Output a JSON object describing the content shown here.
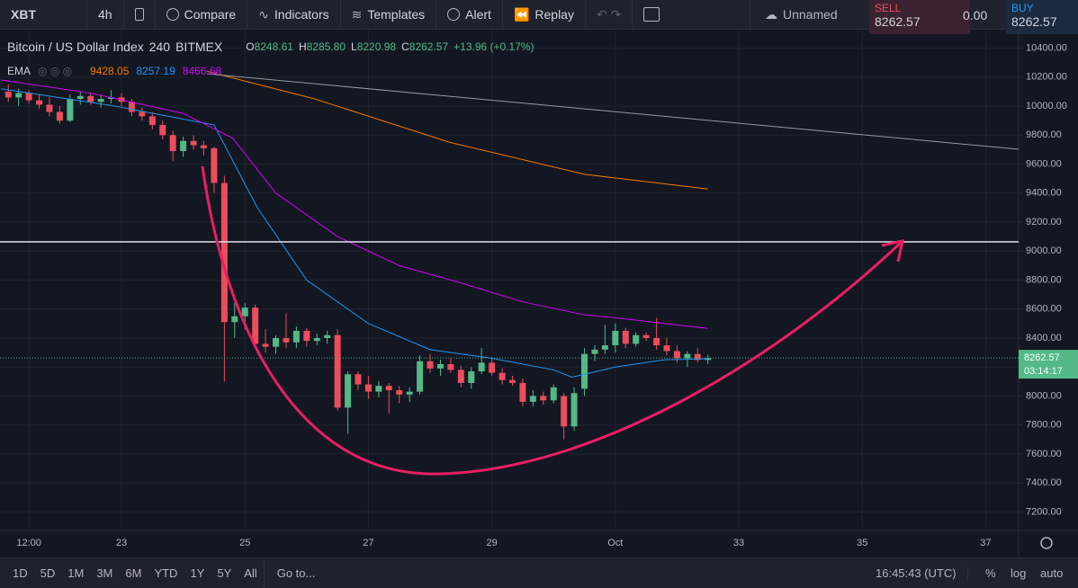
{
  "toolbar": {
    "symbol": "XBT",
    "interval": "4h",
    "compare": "Compare",
    "indicators": "Indicators",
    "templates": "Templates",
    "alert": "Alert",
    "replay": "Replay",
    "layout": "Unnamed",
    "sell": "SELL",
    "sell_price": "8262.57",
    "spread": "0.00",
    "buy": "BUY",
    "buy_price": "8262.57"
  },
  "legend": {
    "name": "Bitcoin / US Dollar Index",
    "interval": "240",
    "exchange": "BITMEX",
    "o_label": "O",
    "o": "8248.61",
    "h_label": "H",
    "h": "8285.80",
    "l_label": "L",
    "l": "8220.98",
    "c_label": "C",
    "c": "8262.57",
    "change": "+13.96 (+0.17%)",
    "ema_label": "EMA"
  },
  "countdown": "03:14:17",
  "bottom_bar": {
    "ranges": [
      "1D",
      "5D",
      "1M",
      "3M",
      "6M",
      "YTD",
      "1Y",
      "5Y",
      "All"
    ],
    "goto": "Go to...",
    "clock": "16:45:43 (UTC)",
    "percent": "%",
    "log": "log",
    "auto": "auto"
  },
  "chart_data": {
    "type": "candlestick",
    "candles": {
      "t": [
        21.167,
        21.333,
        21.5,
        21.667,
        21.833,
        22,
        22.167,
        22.333,
        22.5,
        22.667,
        22.833,
        23,
        23.167,
        23.333,
        23.5,
        23.667,
        23.833,
        24,
        24.167,
        24.333,
        24.5,
        24.667,
        24.833,
        25,
        25.167,
        25.333,
        25.5,
        25.667,
        25.833,
        26,
        26.167,
        26.333,
        26.5,
        26.667,
        26.833,
        27,
        27.167,
        27.333,
        27.5,
        27.667,
        27.833,
        28,
        28.167,
        28.333,
        28.5,
        28.667,
        28.833,
        29,
        29.167,
        29.333,
        29.5,
        29.667,
        29.833,
        30,
        30.167,
        30.333,
        30.5,
        30.667,
        30.833,
        31,
        31.167,
        31.333,
        31.5,
        31.667,
        31.833,
        32,
        32.167,
        32.333,
        32.5
      ],
      "open": [
        10100,
        10060,
        10090,
        10040,
        10010,
        9960,
        9900,
        10050,
        10070,
        10030,
        10050,
        10060,
        10030,
        9960,
        9930,
        9870,
        9800,
        9690,
        9760,
        9730,
        9710,
        9470,
        8510,
        8550,
        8610,
        8360,
        8340,
        8400,
        8370,
        8450,
        8380,
        8400,
        8420,
        7920,
        8150,
        8080,
        8030,
        8070,
        8040,
        8010,
        8030,
        8240,
        8190,
        8220,
        8180,
        8090,
        8170,
        8230,
        8160,
        8110,
        8090,
        7960,
        8000,
        7970,
        8000,
        7790,
        8050,
        8290,
        8320,
        8350,
        8450,
        8360,
        8420,
        8400,
        8350,
        8310,
        8260,
        8290,
        8248.61
      ],
      "high": [
        10150,
        10120,
        10110,
        10080,
        10060,
        10000,
        10080,
        10100,
        10090,
        10080,
        10110,
        10090,
        10050,
        9990,
        9960,
        9900,
        9830,
        9790,
        9800,
        9760,
        9720,
        9520,
        8640,
        8640,
        8630,
        8460,
        8420,
        8570,
        8480,
        8470,
        8430,
        8450,
        8460,
        8170,
        8170,
        8140,
        8100,
        8090,
        8070,
        8060,
        8280,
        8290,
        8250,
        8260,
        8210,
        8200,
        8330,
        8270,
        8190,
        8140,
        8120,
        8040,
        8030,
        8080,
        8020,
        8060,
        8330,
        8350,
        8490,
        8500,
        8470,
        8440,
        8440,
        8540,
        8400,
        8350,
        8310,
        8330,
        8285.8
      ],
      "low": [
        10030,
        10000,
        10020,
        9980,
        9930,
        9880,
        9890,
        10010,
        10010,
        9990,
        10020,
        10000,
        9930,
        9900,
        9840,
        9770,
        9620,
        9650,
        9700,
        9660,
        9400,
        8100,
        8400,
        8460,
        8330,
        8300,
        8290,
        8330,
        8330,
        8340,
        8350,
        8360,
        7900,
        7740,
        8040,
        7980,
        7990,
        7880,
        7950,
        7960,
        8010,
        8160,
        8140,
        8160,
        8060,
        8050,
        8150,
        8140,
        8080,
        8070,
        7930,
        7930,
        7940,
        7950,
        7700,
        7760,
        8000,
        8240,
        8290,
        8300,
        8330,
        8340,
        8380,
        8320,
        8280,
        8230,
        8200,
        8230,
        8220.98
      ],
      "close": [
        10060,
        10090,
        10040,
        10010,
        9960,
        9900,
        10050,
        10070,
        10030,
        10050,
        10060,
        10030,
        9960,
        9930,
        9870,
        9800,
        9690,
        9760,
        9730,
        9710,
        9470,
        8510,
        8550,
        8610,
        8360,
        8340,
        8400,
        8370,
        8450,
        8380,
        8400,
        8420,
        7920,
        8150,
        8080,
        8030,
        8070,
        8040,
        8010,
        8030,
        8240,
        8190,
        8220,
        8180,
        8090,
        8170,
        8230,
        8160,
        8110,
        8090,
        7960,
        8000,
        7970,
        8060,
        7790,
        8020,
        8290,
        8320,
        8350,
        8450,
        8360,
        8420,
        8400,
        8350,
        8310,
        8260,
        8290,
        8248.61,
        8262.57
      ]
    },
    "up_color": "#53b987",
    "down_color": "#eb4d5c",
    "ema": [
      {
        "color": "#f57c00",
        "x": [
          24.385,
          26.13,
          28.32,
          30.5,
          32.5
        ],
        "values": [
          10240,
          10050,
          9750,
          9530,
          9428.05
        ]
      },
      {
        "color": "#2196f3",
        "x": [
          21.05,
          22.9,
          24.5,
          25.2,
          26,
          27,
          28,
          29,
          30,
          30.3,
          31,
          31.8,
          32.5
        ],
        "values": [
          10120,
          10000,
          9870,
          9300,
          8800,
          8500,
          8320,
          8260,
          8180,
          8130,
          8200,
          8250,
          8257.19
        ]
      },
      {
        "color": "#d500f9",
        "x": [
          21.05,
          22.5,
          24,
          24.8,
          25.5,
          26.5,
          27.5,
          28.5,
          29.5,
          30.5,
          31,
          31.8,
          32.5
        ],
        "values": [
          10180,
          10090,
          9950,
          9780,
          9400,
          9100,
          8900,
          8780,
          8650,
          8560,
          8540,
          8500,
          8466.68
        ]
      }
    ],
    "xlim": [
      21.032,
      37.533
    ],
    "xticks": [
      {
        "value": 21.5,
        "label": "12:00"
      },
      23,
      25,
      27,
      29,
      {
        "value": 31,
        "label": "Oct"
      },
      33,
      35,
      37
    ],
    "ylim": [
      7072.25,
      10527.76
    ],
    "yticks": [
      {
        "value": 7200,
        "label": "7200.00"
      },
      {
        "value": 7400,
        "label": "7400.00"
      },
      {
        "value": 7600,
        "label": "7600.00"
      },
      {
        "value": 7800,
        "label": "7800.00"
      },
      {
        "value": 8000,
        "label": "8000.00"
      },
      {
        "value": 8200,
        "label": "8200.00"
      },
      {
        "value": 8400,
        "label": "8400.00"
      },
      {
        "value": 8600,
        "label": "8600.00"
      },
      {
        "value": 8800,
        "label": "8800.00"
      },
      {
        "value": 9000,
        "label": "9000.00"
      },
      {
        "value": 9200,
        "label": "9200.00"
      },
      {
        "value": 9400,
        "label": "9400.00"
      },
      {
        "value": 9600,
        "label": "9600.00"
      },
      {
        "value": 9800,
        "label": "9800.00"
      },
      {
        "value": 10000,
        "label": "10000.00"
      },
      {
        "value": 10200,
        "label": "10200.00"
      },
      {
        "value": 10400,
        "label": "10400.00"
      }
    ],
    "grid": true
  }
}
